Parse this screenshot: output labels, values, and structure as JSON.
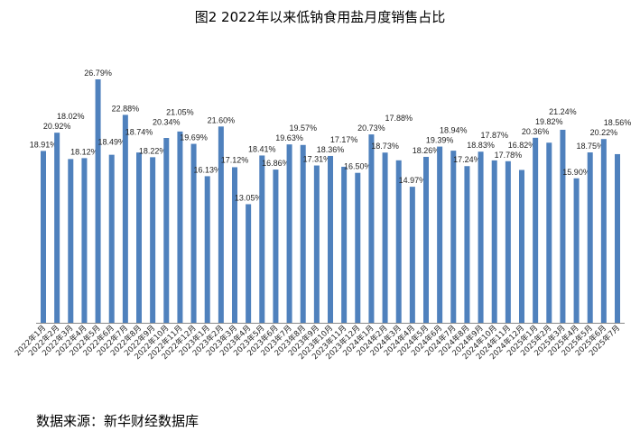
{
  "chart_data": {
    "type": "bar",
    "title": "图2 2022年以来低钠食用盐月度销售占比",
    "source": "数据来源：新华财经数据库",
    "xlabel": "",
    "ylabel": "",
    "ylim": [
      0,
      27
    ],
    "grid": false,
    "legend": "none",
    "bar_color": "#4F81BD",
    "categories": [
      "2022年1月",
      "2022年2月",
      "2022年3月",
      "2022年4月",
      "2022年5月",
      "2022年6月",
      "2022年7月",
      "2022年8月",
      "2022年9月",
      "2022年10月",
      "2022年11月",
      "2022年12月",
      "2023年1月",
      "2023年2月",
      "2023年3月",
      "2023年4月",
      "2023年5月",
      "2023年6月",
      "2023年7月",
      "2023年8月",
      "2023年9月",
      "2023年10月",
      "2023年11月",
      "2023年12月",
      "2024年1月",
      "2024年2月",
      "2024年3月",
      "2024年4月",
      "2024年5月",
      "2024年6月",
      "2024年7月",
      "2024年8月",
      "2024年9月",
      "2024年10月",
      "2024年11月",
      "2024年12月",
      "2025年1月",
      "2025年2月",
      "2025年3月",
      "2025年4月",
      "2025年5月",
      "2025年6月",
      "2025年7月"
    ],
    "values": [
      18.91,
      20.92,
      18.02,
      18.12,
      26.79,
      18.49,
      22.88,
      18.74,
      18.22,
      20.34,
      21.05,
      19.69,
      16.13,
      21.6,
      17.12,
      13.05,
      18.41,
      16.86,
      19.63,
      19.57,
      17.31,
      18.36,
      17.17,
      16.5,
      20.73,
      18.73,
      17.88,
      14.97,
      18.26,
      19.39,
      18.94,
      17.24,
      18.83,
      17.87,
      17.78,
      16.82,
      20.36,
      19.82,
      21.24,
      15.9,
      18.75,
      20.22,
      18.56
    ],
    "value_suffix": "%"
  }
}
